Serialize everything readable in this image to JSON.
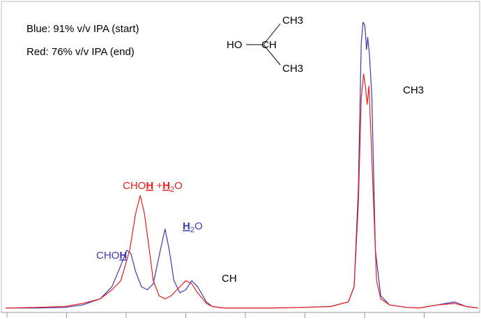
{
  "legend": {
    "blue": "Blue:  91% v/v IPA (start)",
    "red": "Red:  76% v/v IPA (end)"
  },
  "molecule": {
    "ho": "HO",
    "ch": "CH",
    "ch3_top": "CH3",
    "ch3_bottom": "CH3"
  },
  "peak_labels": {
    "choh_h2o_prefix": "CHO",
    "choh_h2o_h": "H",
    "choh_h2o_plus": " +",
    "choh_h2o_h2": "H",
    "choh_h2o_sub": "2",
    "choh_h2o_o": "O",
    "h2o_h": "H",
    "h2o_sub": "2",
    "h2o_o": "O",
    "choh_prefix": "CHO",
    "choh_h": "H",
    "ch": "CH",
    "ch3": "CH3"
  },
  "colors": {
    "blue": "#3b3bb0",
    "red": "#ee1c1c",
    "axis": "#999999"
  },
  "chart_data": {
    "type": "line",
    "title": "",
    "xlabel": "",
    "ylabel": "",
    "xlim": [
      0,
      8
    ],
    "ylim": [
      0,
      1.0
    ],
    "xticks": [
      0,
      1,
      2,
      3,
      4,
      5,
      6,
      7,
      8
    ],
    "xtick_labels": [],
    "grid": false,
    "series": [
      {
        "color": "#3b3bb0",
        "x": [
          0.0,
          0.5,
          1.0,
          1.3,
          1.6,
          1.8,
          1.95,
          2.05,
          2.12,
          2.2,
          2.3,
          2.4,
          2.5,
          2.62,
          2.7,
          2.77,
          2.85,
          2.95,
          3.05,
          3.15,
          3.25,
          3.4,
          3.5,
          3.7,
          4.0,
          4.5,
          5.0,
          5.5,
          5.8,
          5.9,
          5.97,
          6.02,
          6.05,
          6.08,
          6.11,
          6.13,
          6.16,
          6.2,
          6.26,
          6.35,
          6.5,
          6.8,
          7.0,
          7.3,
          7.6,
          7.8,
          8.0
        ],
        "y": [
          0.01,
          0.01,
          0.012,
          0.02,
          0.04,
          0.08,
          0.15,
          0.2,
          0.19,
          0.13,
          0.08,
          0.07,
          0.09,
          0.2,
          0.27,
          0.2,
          0.1,
          0.06,
          0.07,
          0.1,
          0.08,
          0.03,
          0.015,
          0.01,
          0.01,
          0.01,
          0.012,
          0.015,
          0.03,
          0.08,
          0.4,
          0.88,
          0.95,
          0.94,
          0.86,
          0.9,
          0.84,
          0.7,
          0.2,
          0.05,
          0.02,
          0.012,
          0.01,
          0.02,
          0.03,
          0.015,
          0.01
        ]
      },
      {
        "color": "#ee1c1c",
        "x": [
          0.0,
          0.5,
          1.0,
          1.3,
          1.6,
          1.8,
          1.95,
          2.1,
          2.2,
          2.28,
          2.35,
          2.42,
          2.5,
          2.6,
          2.7,
          2.8,
          2.9,
          3.0,
          3.05,
          3.15,
          3.25,
          3.4,
          3.5,
          3.7,
          4.0,
          4.5,
          5.0,
          5.5,
          5.8,
          5.9,
          5.97,
          6.02,
          6.06,
          6.09,
          6.12,
          6.15,
          6.18,
          6.22,
          6.28,
          6.35,
          6.5,
          6.8,
          7.0,
          7.3,
          7.6,
          7.8,
          8.0
        ],
        "y": [
          0.01,
          0.012,
          0.015,
          0.025,
          0.04,
          0.07,
          0.1,
          0.2,
          0.32,
          0.38,
          0.32,
          0.22,
          0.1,
          0.05,
          0.04,
          0.05,
          0.07,
          0.09,
          0.1,
          0.09,
          0.06,
          0.025,
          0.015,
          0.01,
          0.01,
          0.01,
          0.012,
          0.015,
          0.03,
          0.08,
          0.35,
          0.7,
          0.78,
          0.74,
          0.68,
          0.74,
          0.6,
          0.4,
          0.1,
          0.04,
          0.02,
          0.012,
          0.01,
          0.02,
          0.025,
          0.015,
          0.01
        ]
      }
    ]
  }
}
